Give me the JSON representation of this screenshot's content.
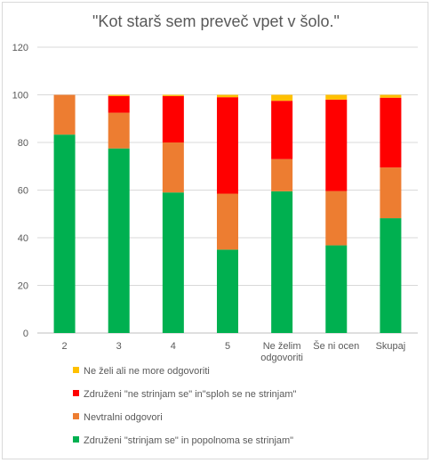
{
  "chart_data": {
    "type": "bar",
    "stacked": true,
    "title": "\"Kot starš sem preveč vpet v šolo.\"",
    "categories": [
      "2",
      "3",
      "4",
      "5",
      "Ne želim odgovoriti",
      "Še ni ocen",
      "Skupaj"
    ],
    "category_lines": [
      [
        "2"
      ],
      [
        "3"
      ],
      [
        "4"
      ],
      [
        "5"
      ],
      [
        "Ne želim",
        "odgovoriti"
      ],
      [
        "Še ni ocen"
      ],
      [
        "Skupaj"
      ]
    ],
    "ylim": [
      0,
      120
    ],
    "yticks": [
      "0",
      "20",
      "40",
      "60",
      "80",
      "100",
      "120"
    ],
    "ytick_values": [
      0,
      20,
      40,
      60,
      80,
      100,
      120
    ],
    "grid": true,
    "legend_position": "bottom",
    "series": [
      {
        "name": "Združeni  \"strinjam se\" in popolnoma se strinjam\"",
        "color": "#00b050",
        "values": [
          83.3,
          77.5,
          59,
          35,
          59.5,
          36.8,
          48.2
        ]
      },
      {
        "name": "Nevtralni odgovori",
        "color": "#ed7d31",
        "values": [
          16.7,
          15,
          21,
          23.5,
          13.5,
          22.8,
          21.3
        ]
      },
      {
        "name": "Združeni  \"ne strinjam se\" in\"sploh se ne strinjam\"",
        "color": "#ff0000",
        "values": [
          0,
          7,
          19.5,
          40.5,
          24.5,
          38.4,
          29.3
        ]
      },
      {
        "name": "Ne želi ali ne more odgovoriti",
        "color": "#ffc000",
        "values": [
          0,
          0.5,
          0.5,
          1,
          2.5,
          2,
          1.2
        ]
      }
    ]
  }
}
